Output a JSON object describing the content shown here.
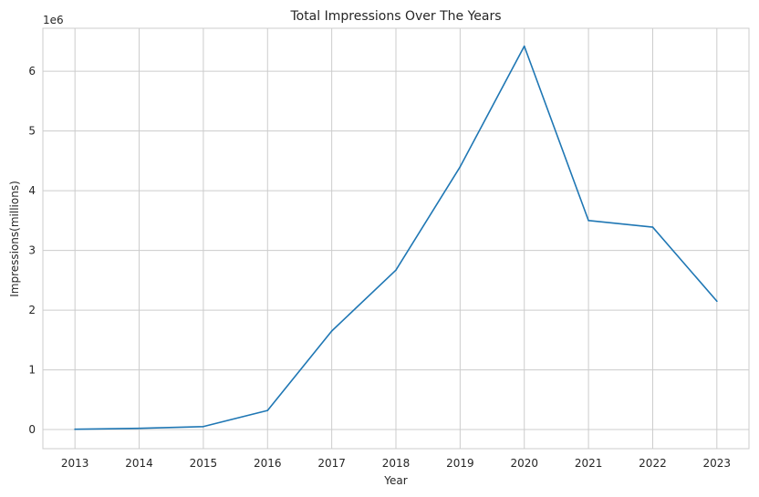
{
  "chart_data": {
    "type": "line",
    "title": "Total Impressions Over The Years",
    "xlabel": "Year",
    "ylabel": "Impressions(millions)",
    "offset_label": "1e6",
    "x": [
      2013,
      2014,
      2015,
      2016,
      2017,
      2018,
      2019,
      2020,
      2021,
      2022,
      2023
    ],
    "x_tick_labels": [
      "2013",
      "2014",
      "2015",
      "2016",
      "2017",
      "2018",
      "2019",
      "2020",
      "2021",
      "2022",
      "2023"
    ],
    "y_ticks": [
      0,
      1,
      2,
      3,
      4,
      5,
      6
    ],
    "y_tick_labels": [
      "0",
      "1",
      "2",
      "3",
      "4",
      "5",
      "6"
    ],
    "series": [
      {
        "values": [
          5000,
          20000,
          50000,
          320000,
          1650000,
          2670000,
          4400000,
          6420000,
          3500000,
          3390000,
          2150000
        ],
        "color": "#1f77b4"
      }
    ],
    "xlim": [
      2012.5,
      2023.5
    ],
    "ylim": [
      -320000,
      6720000
    ],
    "grid": true
  }
}
